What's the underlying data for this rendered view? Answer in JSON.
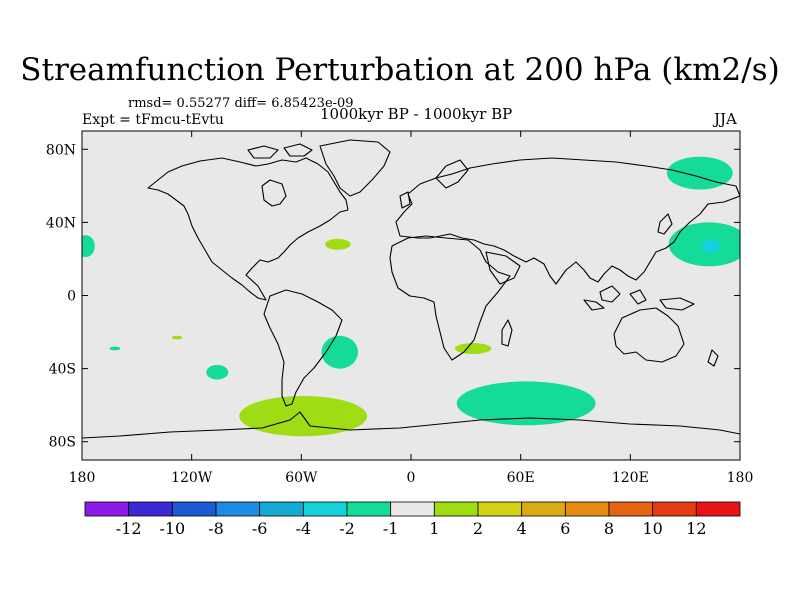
{
  "chart_data": {
    "type": "heatmap",
    "title": "Streamfunction Perturbation at 200 hPa (km2/s)",
    "stats_text": "rmsd= 0.55277 diff= 6.85423e-09",
    "subtitle_left": "Expt = tFmcu-tEvtu",
    "subtitle_center": "1000kyr BP - 1000kyr BP",
    "subtitle_right": "JJA",
    "xlim": [
      -180,
      180
    ],
    "ylim": [
      -90,
      90
    ],
    "xticks": [
      {
        "value": -180,
        "label": "180"
      },
      {
        "value": -120,
        "label": "120W"
      },
      {
        "value": -60,
        "label": "60W"
      },
      {
        "value": 0,
        "label": "0"
      },
      {
        "value": 60,
        "label": "60E"
      },
      {
        "value": 120,
        "label": "120E"
      },
      {
        "value": 180,
        "label": "180"
      }
    ],
    "yticks": [
      {
        "value": 80,
        "label": "80N"
      },
      {
        "value": 40,
        "label": "40N"
      },
      {
        "value": 0,
        "label": "0"
      },
      {
        "value": -40,
        "label": "40S"
      },
      {
        "value": -80,
        "label": "80S"
      }
    ],
    "colorbar": {
      "colors": [
        "#8a1ce6",
        "#3c28d2",
        "#1e5ad2",
        "#1e8ce6",
        "#14aad2",
        "#14d2dc",
        "#14dc96",
        "#e8e8e8",
        "#a0dc14",
        "#d2d214",
        "#dcaa14",
        "#e68c14",
        "#e66414",
        "#e63c14",
        "#e61414"
      ],
      "labels": [
        "-12",
        "-10",
        "-8",
        "-6",
        "-4",
        "-2",
        "-1",
        "1",
        "2",
        "4",
        "6",
        "8",
        "10",
        "12"
      ]
    },
    "anomalies": [
      {
        "lon": 158,
        "lat": 67,
        "rlon": 18,
        "rlat": 9,
        "value": -1.5
      },
      {
        "lon": 163,
        "lat": 28,
        "rlon": 22,
        "rlat": 12,
        "value": -1.5
      },
      {
        "lon": 164,
        "lat": 27,
        "rlon": 5,
        "rlat": 4,
        "value": -2.5
      },
      {
        "lon": -178,
        "lat": 27,
        "rlon": 5,
        "rlat": 6,
        "value": -1.5
      },
      {
        "lon": -40,
        "lat": 28,
        "rlon": 7,
        "rlat": 3,
        "value": 1.5
      },
      {
        "lon": -106,
        "lat": -42,
        "rlon": 6,
        "rlat": 4,
        "value": -1.5
      },
      {
        "lon": -39,
        "lat": -31,
        "rlon": 10,
        "rlat": 9,
        "value": -1.5
      },
      {
        "lon": 34,
        "lat": -29,
        "rlon": 10,
        "rlat": 3,
        "value": 1.5
      },
      {
        "lon": 63,
        "lat": -59,
        "rlon": 38,
        "rlat": 12,
        "value": -1.5
      },
      {
        "lon": -59,
        "lat": -66,
        "rlon": 35,
        "rlat": 11,
        "value": 1.5
      },
      {
        "lon": -162,
        "lat": -29,
        "rlon": 3,
        "rlat": 1,
        "value": -1.5
      },
      {
        "lon": -128,
        "lat": -23,
        "rlon": 3,
        "rlat": 1,
        "value": 1.5
      }
    ]
  }
}
